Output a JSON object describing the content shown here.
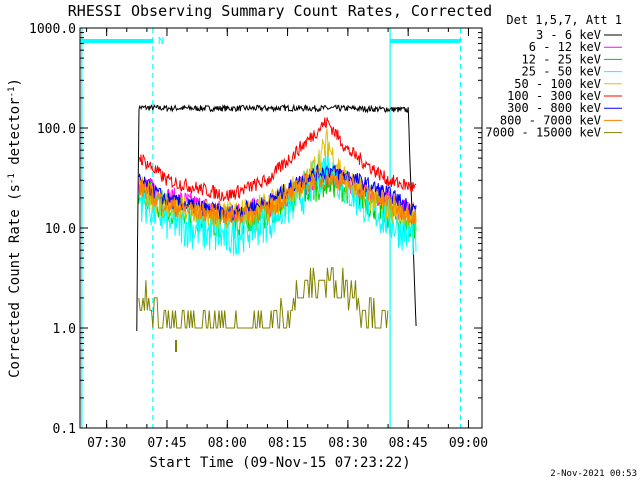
{
  "chart_data": {
    "type": "line",
    "title": "RHESSI Observing Summary Count Rates, Corrected",
    "xlabel": "Start Time (09-Nov-15 07:23:22)",
    "ylabel_pre": "Corrected Count Rate (s",
    "ylabel_sup": "-1",
    "ylabel_mid": " detector",
    "ylabel_post": ")",
    "y_scale": "log",
    "ylim": [
      0.1,
      1000
    ],
    "xlim": [
      "07:23:22",
      "09:03:22"
    ],
    "x_ticks": [
      "07:30",
      "07:45",
      "08:00",
      "08:15",
      "08:30",
      "08:45",
      "09:00"
    ],
    "y_ticks": [
      "0.1",
      "1.0",
      "10.0",
      "100.0",
      "1000.0"
    ],
    "legend_title": "Det 1,5,7, Att 1",
    "legend_position": "right",
    "flag_label": "N",
    "footer": "2-Nov-2021 00:53",
    "vertical_lines": [
      {
        "time": "07:23:50",
        "style": "solid",
        "color": "#00ffff"
      },
      {
        "time": "07:41:30",
        "style": "dashed",
        "color": "#00ffff"
      },
      {
        "time": "08:40:30",
        "style": "solid",
        "color": "#00ffff"
      },
      {
        "time": "08:58:00",
        "style": "dashed",
        "color": "#00ffff"
      }
    ],
    "flag_bars": [
      {
        "start": "07:23:22",
        "end": "07:41:30"
      },
      {
        "start": "08:40:30",
        "end": "08:58:00"
      }
    ],
    "series": [
      {
        "name": "3 - 6 keV",
        "color": "#000000",
        "x": [
          "07:37:30",
          "07:38",
          "07:45",
          "08:00",
          "08:15",
          "08:30",
          "08:45",
          "08:47"
        ],
        "y": [
          1.0,
          160,
          158,
          157,
          158,
          157,
          152,
          1.0
        ]
      },
      {
        "name": "6 - 12 keV",
        "color": "#ff00ff",
        "x": [
          "07:38",
          "07:45",
          "08:00",
          "08:10",
          "08:20",
          "08:25",
          "08:30",
          "08:40",
          "08:47"
        ],
        "y": [
          28,
          20,
          14,
          16,
          28,
          33,
          28,
          18,
          13
        ]
      },
      {
        "name": "12 - 25 keV",
        "color": "#00cc00",
        "x": [
          "07:38",
          "07:45",
          "08:00",
          "08:10",
          "08:20",
          "08:25",
          "08:30",
          "08:40",
          "08:47"
        ],
        "y": [
          25,
          16,
          11,
          14,
          24,
          30,
          25,
          14,
          10
        ]
      },
      {
        "name": "25 - 50 keV",
        "color": "#00ffff",
        "x": [
          "07:38",
          "07:45",
          "08:00",
          "08:10",
          "08:20",
          "08:24",
          "08:25",
          "08:26",
          "08:30",
          "08:40",
          "08:47"
        ],
        "y": [
          20,
          12,
          8,
          12,
          24,
          40,
          50,
          38,
          24,
          12,
          8
        ]
      },
      {
        "name": "50 - 100 keV",
        "color": "#e0c000",
        "x": [
          "07:38",
          "07:45",
          "08:00",
          "08:10",
          "08:20",
          "08:24",
          "08:25",
          "08:26",
          "08:30",
          "08:40",
          "08:47"
        ],
        "y": [
          25,
          16,
          13,
          16,
          30,
          60,
          75,
          55,
          28,
          16,
          13
        ]
      },
      {
        "name": "100 - 300 keV",
        "color": "#ff0000",
        "x": [
          "07:38",
          "07:45",
          "08:00",
          "08:10",
          "08:20",
          "08:24",
          "08:25",
          "08:26",
          "08:30",
          "08:40",
          "08:47"
        ],
        "y": [
          52,
          30,
          21,
          30,
          75,
          110,
          115,
          100,
          60,
          30,
          25
        ]
      },
      {
        "name": "300 - 800 keV",
        "color": "#0000ff",
        "x": [
          "07:38",
          "07:45",
          "08:00",
          "08:10",
          "08:20",
          "08:25",
          "08:30",
          "08:40",
          "08:47"
        ],
        "y": [
          30,
          19,
          14,
          18,
          33,
          38,
          33,
          22,
          15
        ]
      },
      {
        "name": "800 - 7000 keV",
        "color": "#ff8000",
        "x": [
          "07:38",
          "07:45",
          "08:00",
          "08:10",
          "08:20",
          "08:25",
          "08:30",
          "08:40",
          "08:47"
        ],
        "y": [
          26,
          17,
          13,
          15,
          29,
          32,
          28,
          18,
          13
        ]
      },
      {
        "name": "7000 - 15000 keV",
        "color": "#808000",
        "x": [
          "07:38",
          "07:40",
          "07:43",
          "07:47",
          "08:10",
          "08:15",
          "08:20",
          "08:25",
          "08:30",
          "08:35",
          "08:40"
        ],
        "y": [
          1.5,
          2.0,
          1.5,
          1.0,
          1.0,
          1.5,
          2.5,
          3.0,
          2.5,
          1.5,
          1.0
        ]
      }
    ]
  }
}
